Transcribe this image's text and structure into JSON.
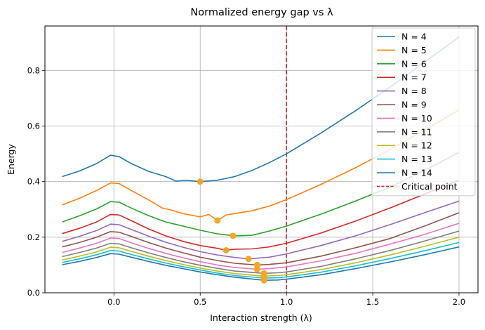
{
  "chart_data": {
    "type": "line",
    "title": "Normalized energy gap vs λ",
    "xlabel": "Interaction strength (λ)",
    "ylabel": "Energy",
    "xlim": [
      -0.4,
      2.11
    ],
    "ylim": [
      0,
      0.96
    ],
    "xticks": [
      0.0,
      0.5,
      1.0,
      1.5,
      2.0
    ],
    "xtick_labels": [
      "0.0",
      "0.5",
      "1.0",
      "1.5",
      "2.0"
    ],
    "yticks": [
      0.0,
      0.2,
      0.4,
      0.6,
      0.8
    ],
    "ytick_labels": [
      "0.0",
      "0.2",
      "0.4",
      "0.6",
      "0.8"
    ],
    "grid": true,
    "legend_position": "top-right",
    "critical_point": {
      "label": "Critical point",
      "x": 1.0,
      "color": "#d62728",
      "style": "dashed"
    },
    "minima_marker_color": "#f5a623",
    "series": [
      {
        "name": "N = 4",
        "color": "#1f77b4",
        "x": [
          -0.3,
          -0.2,
          -0.1,
          -0.02,
          0.03,
          0.1,
          0.2,
          0.3,
          0.36,
          0.42,
          0.5,
          0.6,
          0.7,
          0.8,
          0.9,
          1.0,
          1.2,
          1.4,
          1.6,
          1.8,
          2.0
        ],
        "y": [
          0.418,
          0.438,
          0.465,
          0.495,
          0.49,
          0.465,
          0.437,
          0.418,
          0.402,
          0.405,
          0.4,
          0.405,
          0.418,
          0.44,
          0.468,
          0.5,
          0.575,
          0.655,
          0.74,
          0.83,
          0.92
        ],
        "min": [
          0.5,
          0.4
        ]
      },
      {
        "name": "N = 5",
        "color": "#ff7f0e",
        "x": [
          -0.3,
          -0.2,
          -0.1,
          -0.02,
          0.03,
          0.1,
          0.2,
          0.28,
          0.33,
          0.4,
          0.5,
          0.55,
          0.6,
          0.65,
          0.7,
          0.8,
          0.9,
          1.0,
          1.2,
          1.4,
          1.6,
          1.8,
          2.0
        ],
        "y": [
          0.316,
          0.34,
          0.368,
          0.395,
          0.393,
          0.368,
          0.335,
          0.305,
          0.298,
          0.285,
          0.273,
          0.282,
          0.26,
          0.28,
          0.285,
          0.295,
          0.312,
          0.335,
          0.39,
          0.45,
          0.515,
          0.585,
          0.658
        ],
        "min": [
          0.6,
          0.26
        ]
      },
      {
        "name": "N = 6",
        "color": "#2ca02c",
        "x": [
          -0.3,
          -0.2,
          -0.1,
          -0.02,
          0.03,
          0.1,
          0.2,
          0.3,
          0.4,
          0.5,
          0.6,
          0.7,
          0.8,
          0.9,
          1.0,
          1.2,
          1.4,
          1.6,
          1.8,
          2.0
        ],
        "y": [
          0.255,
          0.277,
          0.302,
          0.328,
          0.326,
          0.305,
          0.278,
          0.255,
          0.24,
          0.225,
          0.212,
          0.205,
          0.207,
          0.222,
          0.24,
          0.283,
          0.33,
          0.38,
          0.44,
          0.505
        ],
        "min": [
          0.69,
          0.205
        ]
      },
      {
        "name": "N = 7",
        "color": "#d62728",
        "x": [
          -0.3,
          -0.2,
          -0.1,
          -0.02,
          0.03,
          0.1,
          0.2,
          0.3,
          0.4,
          0.5,
          0.6,
          0.65,
          0.7,
          0.8,
          0.9,
          1.0,
          1.2,
          1.4,
          1.6,
          1.8,
          2.0
        ],
        "y": [
          0.213,
          0.232,
          0.255,
          0.282,
          0.28,
          0.26,
          0.23,
          0.205,
          0.185,
          0.17,
          0.16,
          0.153,
          0.157,
          0.158,
          0.165,
          0.178,
          0.215,
          0.258,
          0.305,
          0.355,
          0.405
        ],
        "min": [
          0.65,
          0.153
        ]
      },
      {
        "name": "N = 8",
        "color": "#9467bd",
        "x": [
          -0.3,
          -0.2,
          -0.1,
          -0.02,
          0.03,
          0.1,
          0.2,
          0.3,
          0.4,
          0.5,
          0.6,
          0.7,
          0.78,
          0.9,
          1.0,
          1.2,
          1.4,
          1.6,
          1.8,
          2.0
        ],
        "y": [
          0.185,
          0.203,
          0.224,
          0.247,
          0.245,
          0.228,
          0.204,
          0.182,
          0.164,
          0.148,
          0.136,
          0.127,
          0.122,
          0.128,
          0.14,
          0.17,
          0.205,
          0.245,
          0.288,
          0.33
        ],
        "min": [
          0.78,
          0.122
        ]
      },
      {
        "name": "N = 9",
        "color": "#8c564b",
        "x": [
          -0.3,
          -0.2,
          -0.1,
          -0.02,
          0.03,
          0.1,
          0.2,
          0.3,
          0.4,
          0.5,
          0.6,
          0.7,
          0.83,
          0.9,
          1.0,
          1.2,
          1.4,
          1.6,
          1.8,
          2.0
        ],
        "y": [
          0.165,
          0.181,
          0.2,
          0.22,
          0.218,
          0.203,
          0.181,
          0.161,
          0.144,
          0.128,
          0.116,
          0.106,
          0.1,
          0.102,
          0.108,
          0.132,
          0.162,
          0.195,
          0.24,
          0.288
        ],
        "min": [
          0.83,
          0.1
        ]
      },
      {
        "name": "N = 10",
        "color": "#e377c2",
        "x": [
          -0.3,
          -0.2,
          -0.1,
          -0.02,
          0.03,
          0.1,
          0.2,
          0.3,
          0.4,
          0.5,
          0.6,
          0.7,
          0.83,
          0.9,
          1.0,
          1.2,
          1.4,
          1.6,
          1.8,
          2.0
        ],
        "y": [
          0.145,
          0.161,
          0.178,
          0.197,
          0.195,
          0.18,
          0.16,
          0.142,
          0.126,
          0.112,
          0.1,
          0.091,
          0.085,
          0.087,
          0.093,
          0.115,
          0.142,
          0.175,
          0.21,
          0.25
        ],
        "min": [
          0.83,
          0.085
        ]
      },
      {
        "name": "N = 11",
        "color": "#7f7f7f",
        "x": [
          -0.3,
          -0.2,
          -0.1,
          -0.02,
          0.03,
          0.1,
          0.2,
          0.3,
          0.4,
          0.5,
          0.6,
          0.7,
          0.87,
          0.95,
          1.0,
          1.2,
          1.4,
          1.6,
          1.8,
          2.0
        ],
        "y": [
          0.13,
          0.145,
          0.161,
          0.178,
          0.176,
          0.162,
          0.144,
          0.127,
          0.112,
          0.099,
          0.088,
          0.078,
          0.07,
          0.072,
          0.075,
          0.095,
          0.122,
          0.152,
          0.186,
          0.222
        ],
        "min": [
          0.87,
          0.07
        ]
      },
      {
        "name": "N = 12",
        "color": "#bcbd22",
        "x": [
          -0.3,
          -0.2,
          -0.1,
          -0.02,
          0.03,
          0.1,
          0.2,
          0.3,
          0.4,
          0.5,
          0.6,
          0.7,
          0.87,
          0.95,
          1.0,
          1.2,
          1.4,
          1.6,
          1.8,
          2.0
        ],
        "y": [
          0.118,
          0.132,
          0.147,
          0.164,
          0.162,
          0.149,
          0.132,
          0.116,
          0.102,
          0.089,
          0.078,
          0.069,
          0.06,
          0.062,
          0.065,
          0.083,
          0.108,
          0.136,
          0.167,
          0.2
        ],
        "min": [
          0.87,
          0.06
        ]
      },
      {
        "name": "N = 13",
        "color": "#17becf",
        "x": [
          -0.3,
          -0.2,
          -0.1,
          -0.02,
          0.03,
          0.1,
          0.2,
          0.3,
          0.4,
          0.5,
          0.6,
          0.7,
          0.87,
          0.95,
          1.0,
          1.2,
          1.4,
          1.6,
          1.8,
          2.0
        ],
        "y": [
          0.109,
          0.122,
          0.137,
          0.152,
          0.15,
          0.138,
          0.122,
          0.107,
          0.094,
          0.082,
          0.071,
          0.062,
          0.053,
          0.054,
          0.057,
          0.074,
          0.097,
          0.123,
          0.151,
          0.181
        ],
        "min": [
          0.87,
          0.053
        ]
      },
      {
        "name": "N = 14",
        "color": "#1f77b4",
        "x": [
          -0.3,
          -0.2,
          -0.1,
          -0.02,
          0.03,
          0.1,
          0.2,
          0.3,
          0.4,
          0.5,
          0.6,
          0.7,
          0.87,
          0.95,
          1.0,
          1.2,
          1.4,
          1.6,
          1.8,
          2.0
        ],
        "y": [
          0.101,
          0.113,
          0.127,
          0.141,
          0.139,
          0.128,
          0.113,
          0.099,
          0.087,
          0.075,
          0.065,
          0.056,
          0.045,
          0.046,
          0.049,
          0.065,
          0.087,
          0.111,
          0.137,
          0.165
        ],
        "min": [
          0.87,
          0.045
        ]
      }
    ]
  }
}
